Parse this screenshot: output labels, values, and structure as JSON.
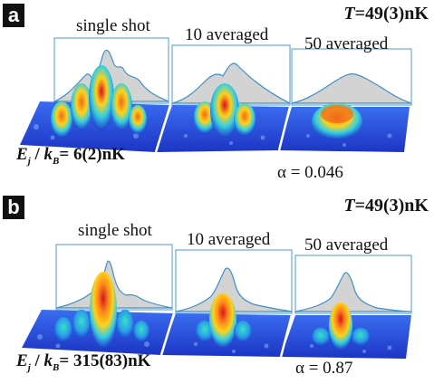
{
  "panels": [
    {
      "label": "a",
      "temperature": {
        "symbol": "T",
        "value": "=49(3)nK"
      },
      "columns": [
        "single shot",
        "10 averaged",
        "50 averaged"
      ],
      "energy": {
        "e": "E",
        "j": "j",
        "slash": " / ",
        "k": "k",
        "b": "B",
        "value": "= 6(2)nK"
      },
      "alpha": "α = 0.046"
    },
    {
      "label": "b",
      "temperature": {
        "symbol": "T",
        "value": "=49(3)nK"
      },
      "columns": [
        "single shot",
        "10 averaged",
        "50 averaged"
      ],
      "energy": {
        "e": "E",
        "j": "j",
        "slash": " / ",
        "k": "k",
        "b": "B",
        "value": "= 315(83)nK"
      },
      "alpha": "α = 0.87"
    }
  ],
  "colors": {
    "profile_fill": "#d3d3d3",
    "profile_line": "#3f8fc4",
    "frame": "#6aaad4",
    "surface_low": "#1f3fd0",
    "surface_mid": "#35d0e0",
    "surface_high": "#ffd21a",
    "surface_peak": "#d6141e"
  }
}
